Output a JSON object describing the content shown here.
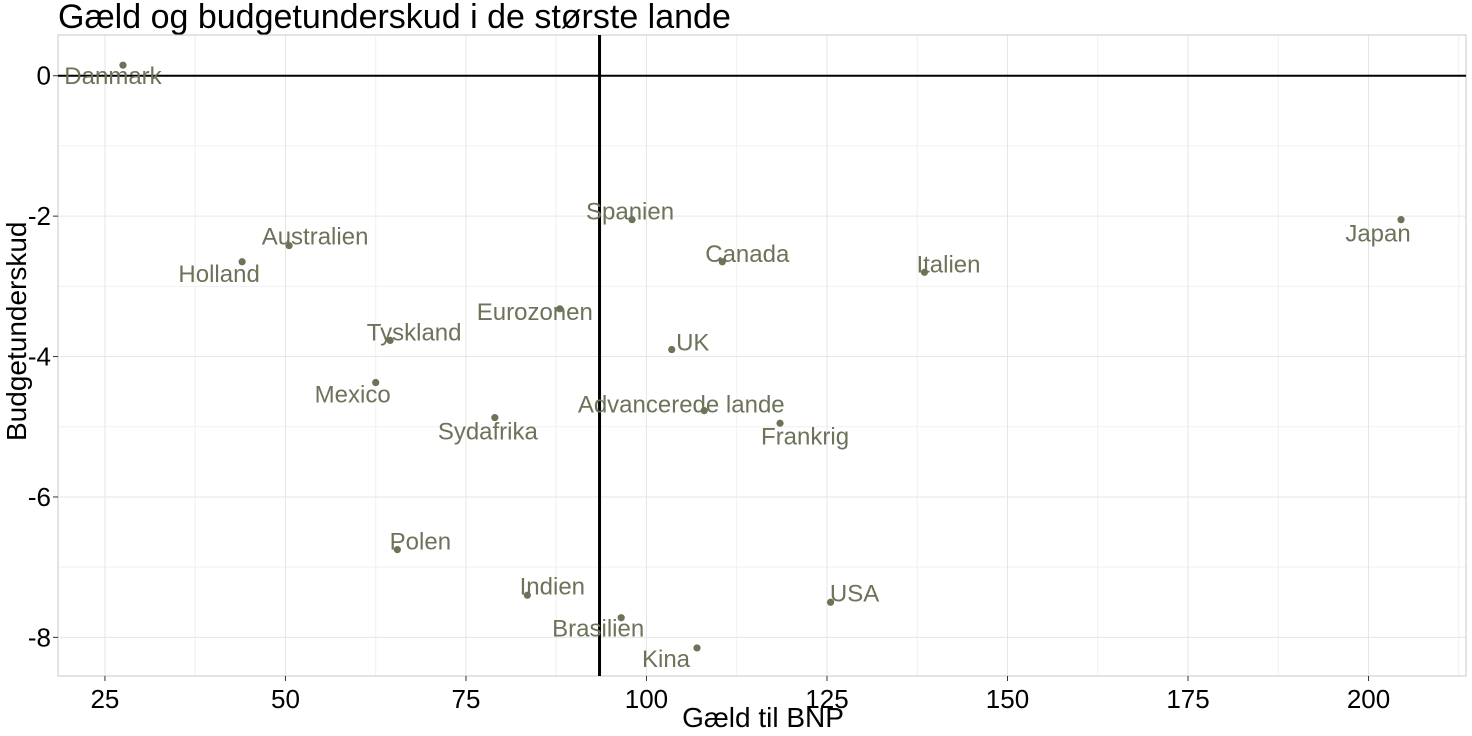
{
  "chart_data": {
    "type": "scatter",
    "title": "Gæld og budgetunderskud i de største lande",
    "xlabel": "Gæld til BNP",
    "ylabel": "Budgetunderskud",
    "xlim": [
      18.5,
      213.5
    ],
    "ylim": [
      -8.55,
      0.58
    ],
    "x_ticks": [
      25,
      50,
      75,
      100,
      125,
      150,
      175,
      200
    ],
    "y_ticks": [
      0,
      -2,
      -4,
      -6,
      -8
    ],
    "reference_lines": {
      "horizontal_y": 0,
      "vertical_x": 93.5
    },
    "grid": true,
    "legend": "none",
    "point_color": "#6b7358",
    "points": [
      {
        "label": "Danmark",
        "x": 27.5,
        "y": 0.15
      },
      {
        "label": "Japan",
        "x": 204.5,
        "y": -2.05
      },
      {
        "label": "Spanien",
        "x": 98.0,
        "y": -2.05
      },
      {
        "label": "Australien",
        "x": 50.5,
        "y": -2.42
      },
      {
        "label": "Canada",
        "x": 110.5,
        "y": -2.65
      },
      {
        "label": "Holland",
        "x": 44.0,
        "y": -2.65
      },
      {
        "label": "Italien",
        "x": 138.5,
        "y": -2.8
      },
      {
        "label": "Eurozonen",
        "x": 88.0,
        "y": -3.32
      },
      {
        "label": "Tyskland",
        "x": 64.5,
        "y": -3.77
      },
      {
        "label": "UK",
        "x": 103.5,
        "y": -3.9
      },
      {
        "label": "Mexico",
        "x": 62.5,
        "y": -4.37
      },
      {
        "label": "Advancerede lande",
        "x": 108.0,
        "y": -4.77
      },
      {
        "label": "Sydafrika",
        "x": 79.0,
        "y": -4.87
      },
      {
        "label": "Frankrig",
        "x": 118.5,
        "y": -4.95
      },
      {
        "label": "Polen",
        "x": 65.5,
        "y": -6.75
      },
      {
        "label": "Indien",
        "x": 83.5,
        "y": -7.4
      },
      {
        "label": "USA",
        "x": 125.5,
        "y": -7.5
      },
      {
        "label": "Brasilien",
        "x": 96.5,
        "y": -7.72
      },
      {
        "label": "Kina",
        "x": 107.0,
        "y": -8.15
      }
    ]
  }
}
